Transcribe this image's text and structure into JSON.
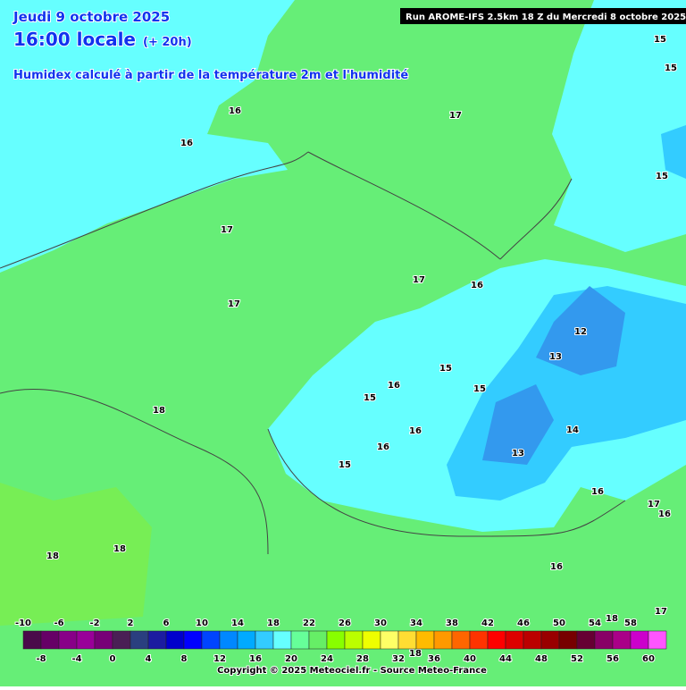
{
  "header": {
    "date": "Jeudi 9 octobre 2025",
    "time": "16:00 locale",
    "offset": "(+ 20h)",
    "subtitle": "Humidex calculé à partir de la température 2m et l'humidité",
    "run": "Run AROME-IFS 2.5km 18 Z du Mercredi 8 octobre 2025"
  },
  "contour_labels": [
    16,
    16,
    17,
    15,
    15,
    15,
    17,
    17,
    16,
    17,
    12,
    13,
    15,
    16,
    15,
    15,
    18,
    16,
    14,
    16,
    13,
    15,
    16,
    17,
    16,
    18,
    18,
    16,
    18,
    17,
    18
  ],
  "colorbar": {
    "values": [
      -10,
      -8,
      -6,
      -4,
      -2,
      0,
      2,
      4,
      6,
      8,
      10,
      12,
      14,
      16,
      18,
      20,
      22,
      24,
      26,
      28,
      30,
      32,
      34,
      36,
      38,
      40,
      42,
      44,
      46,
      48,
      50,
      52,
      54,
      56,
      58,
      60
    ],
    "colors": [
      "#4a0a4a",
      "#660066",
      "#880088",
      "#990099",
      "#770077",
      "#4a1f55",
      "#2a3f7f",
      "#1c1ca0",
      "#0000cc",
      "#0000ff",
      "#0044ff",
      "#0088ff",
      "#00aaff",
      "#33ccff",
      "#66ffff",
      "#66ff99",
      "#66ee66",
      "#88ff00",
      "#bbff00",
      "#eeff00",
      "#ffff66",
      "#ffdd33",
      "#ffbb00",
      "#ff9900",
      "#ff6600",
      "#ff3300",
      "#ff0000",
      "#dd0000",
      "#bb0000",
      "#990000",
      "#770000",
      "#660033",
      "#880066",
      "#aa0088",
      "#cc00cc",
      "#ff55ff"
    ]
  },
  "footer": "Copyright © 2025 Meteociel.fr - Source Meteo-France"
}
